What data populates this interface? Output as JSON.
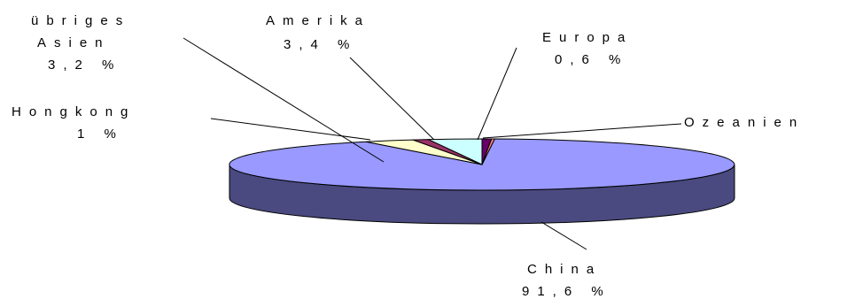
{
  "chart_data": {
    "type": "pie",
    "style": "3d",
    "title": "",
    "slices": [
      {
        "name": "China",
        "value_label": "91,6 %",
        "value": 91.6,
        "color": "#9999ff",
        "side_color": "#4a4a80"
      },
      {
        "name": "übriges Asien",
        "name_lines": [
          "übriges",
          "Asien"
        ],
        "value_label": "3,2 %",
        "value": 3.2,
        "color": "#ffffcc",
        "side_color": "#ffffcc"
      },
      {
        "name": "Hongkong",
        "value_label": "1 %",
        "value": 1.0,
        "color": "#993366",
        "side_color": "#7a2850"
      },
      {
        "name": "Amerika",
        "value_label": "3,4 %",
        "value": 3.4,
        "color": "#ccffff",
        "side_color": "#ccffff"
      },
      {
        "name": "Europa",
        "value_label": "0,6 %",
        "value": 0.6,
        "color": "#660066",
        "side_color": "#440044"
      },
      {
        "name": "Ozeanien",
        "value_label": "",
        "value": 0.2,
        "color": "#ff8080",
        "side_color": "#cc6666"
      }
    ],
    "edge_color": "#000000"
  }
}
